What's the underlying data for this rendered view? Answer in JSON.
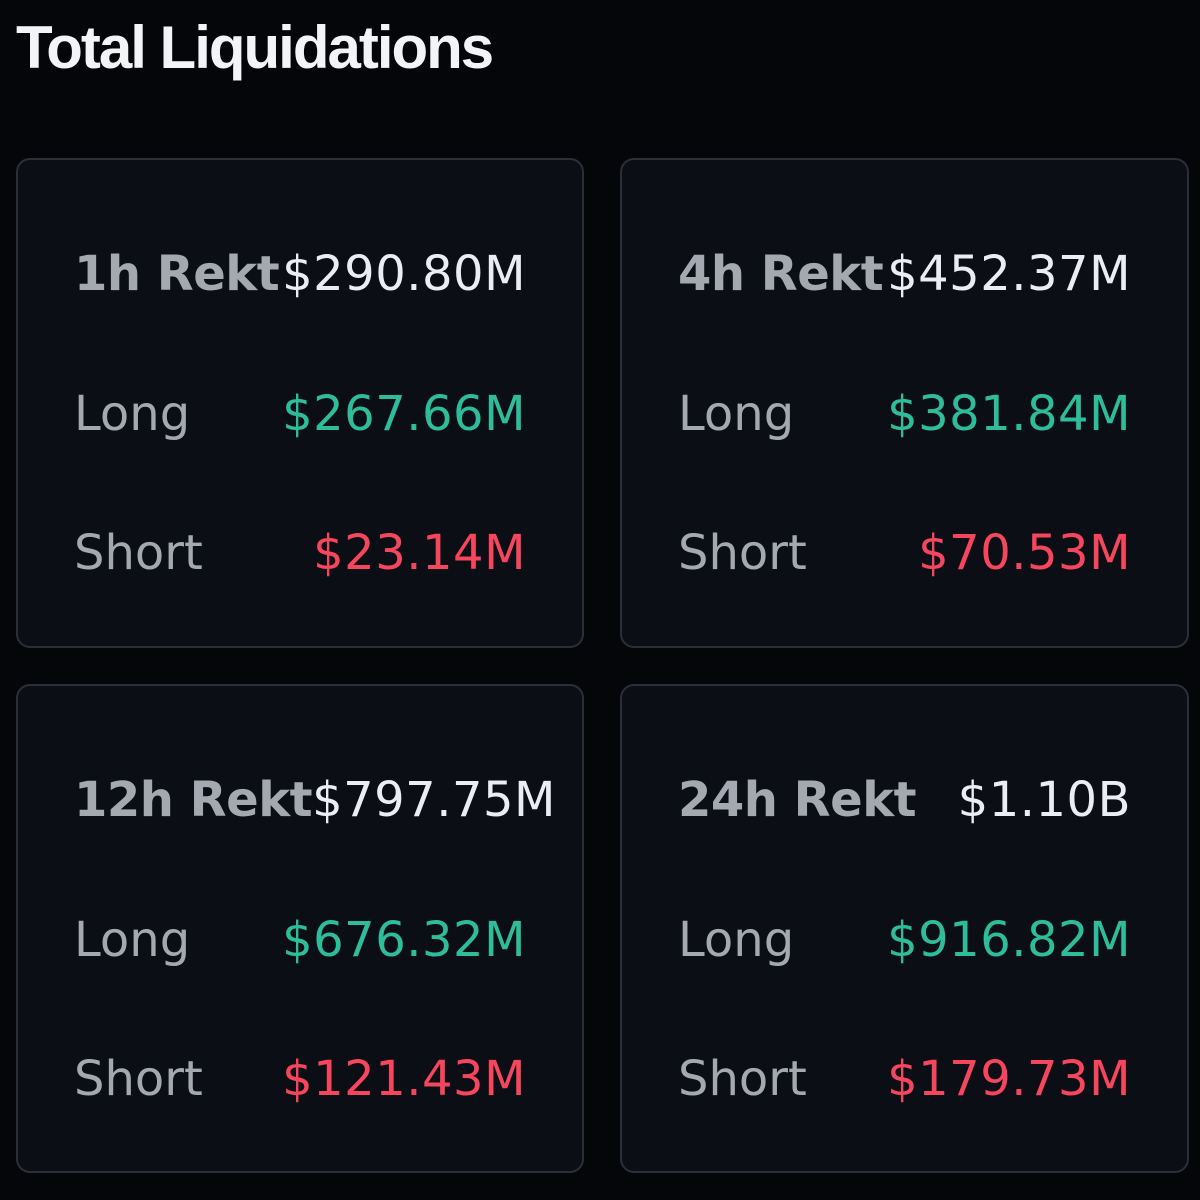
{
  "header": {
    "title": "Total Liquidations"
  },
  "colors": {
    "background": "#05060a",
    "card_background": "#0b0e15",
    "card_border": "#2b2f36",
    "label": "#a3a8b1",
    "total": "#eaedf1",
    "long": "#2ebd9a",
    "short": "#f6465d"
  },
  "cards": [
    {
      "period_label": "1h Rekt",
      "total": "$290.80M",
      "long_label": "Long",
      "long": "$267.66M",
      "short_label": "Short",
      "short": "$23.14M"
    },
    {
      "period_label": "4h Rekt",
      "total": "$452.37M",
      "long_label": "Long",
      "long": "$381.84M",
      "short_label": "Short",
      "short": "$70.53M"
    },
    {
      "period_label": "12h Rekt",
      "total": "$797.75M",
      "long_label": "Long",
      "long": "$676.32M",
      "short_label": "Short",
      "short": "$121.43M"
    },
    {
      "period_label": "24h Rekt",
      "total": "$1.10B",
      "long_label": "Long",
      "long": "$916.82M",
      "short_label": "Short",
      "short": "$179.73M"
    }
  ]
}
